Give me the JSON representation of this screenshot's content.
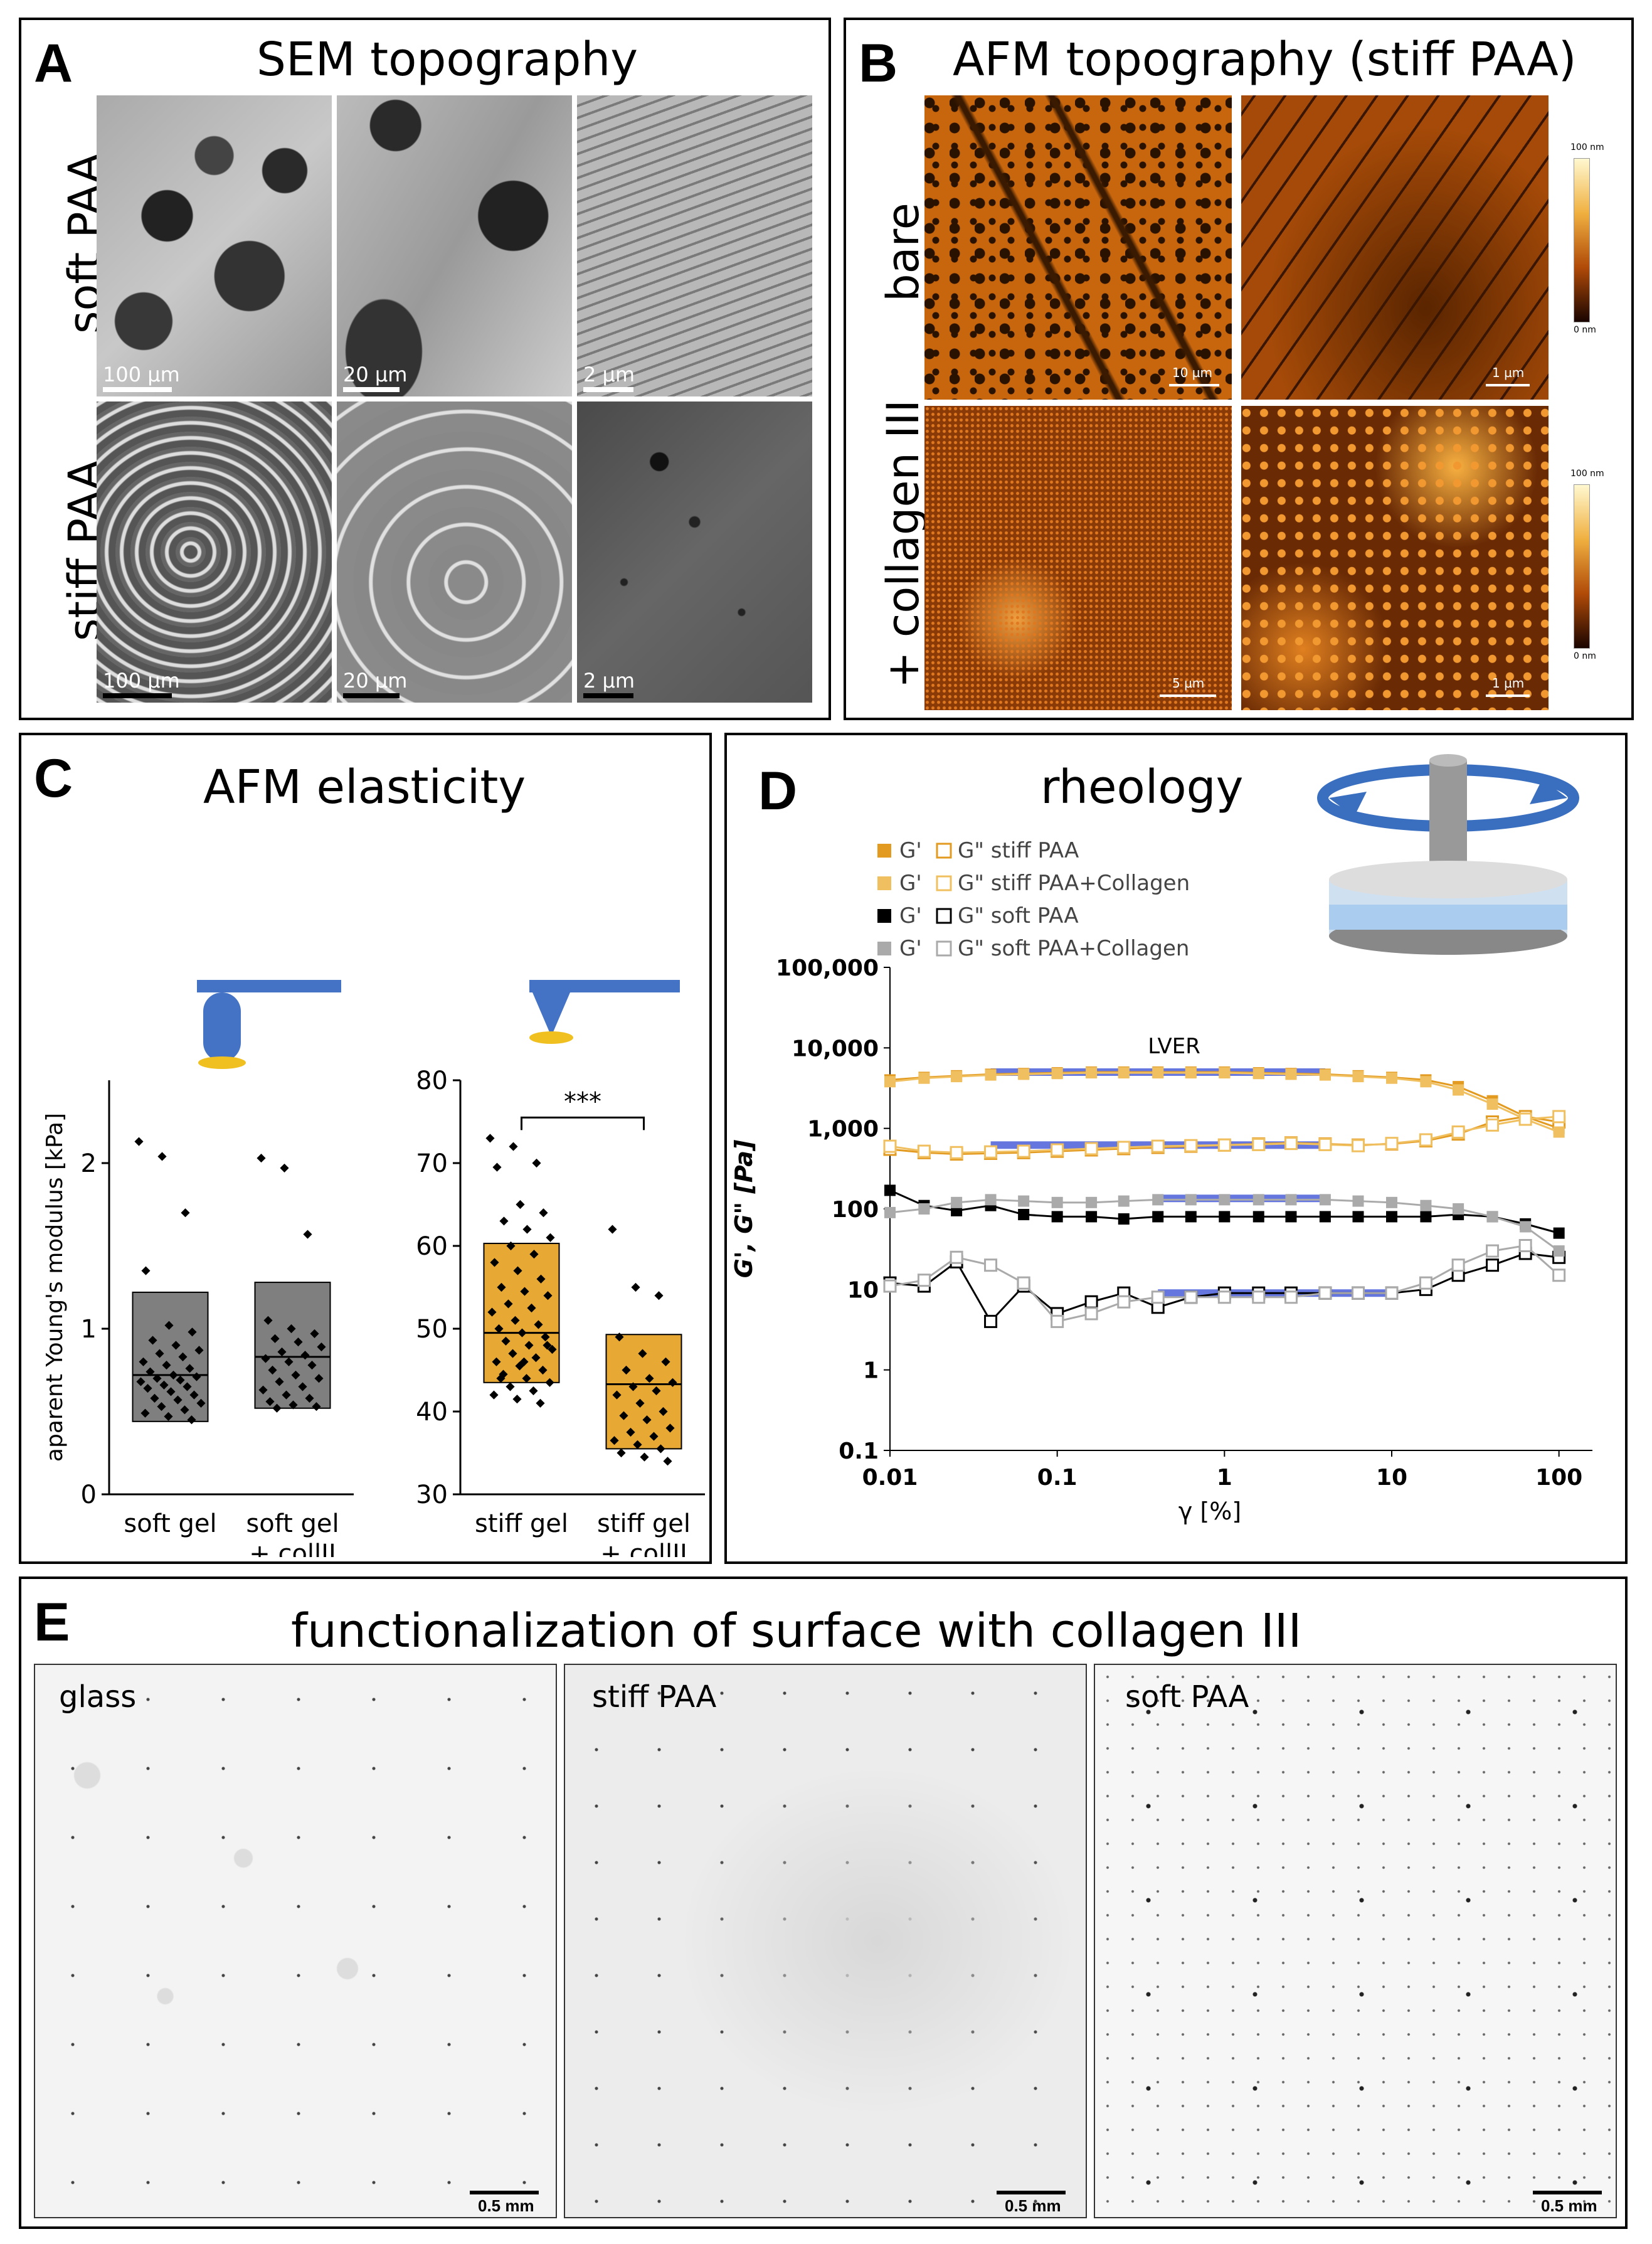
{
  "panels": {
    "A": {
      "label": "A",
      "title": "SEM topography",
      "rows": [
        "soft PAA",
        "stiff PAA"
      ],
      "scales": [
        "100 µm",
        "20 µm",
        "2 µm",
        "100 µm",
        "20 µm",
        "2 µm"
      ]
    },
    "B": {
      "label": "B",
      "title": "AFM topography (stiff PAA)",
      "rows": [
        "bare",
        "+ collagen III"
      ],
      "scales": [
        "10 µm",
        "1 µm",
        "5 µm",
        "1 µm"
      ],
      "colorbar": {
        "top": "100 nm",
        "bottom": "0 nm"
      }
    },
    "C": {
      "label": "C",
      "title": "AFM elasticity",
      "sig": "***"
    },
    "D": {
      "label": "D",
      "title": "rheology",
      "lver": "LVER"
    },
    "E": {
      "label": "E",
      "title": "functionalization of surface with collagen III",
      "subpanels": [
        {
          "label": "glass",
          "scale": "0.5 mm"
        },
        {
          "label": "stiff PAA",
          "scale": "0.5 mm"
        },
        {
          "label": "soft PAA",
          "scale": "0.5 mm"
        }
      ]
    }
  },
  "chart_data": [
    {
      "type": "box",
      "panel": "C-left",
      "ylabel": "aparent Young's modulus [kPa]",
      "ylim": [
        0,
        2.5
      ],
      "yticks": [
        "0",
        "1",
        "2"
      ],
      "categories": [
        "soft gel",
        "soft gel\n+ collII"
      ],
      "colors": {
        "fill": "#7f7f7f"
      },
      "boxes": [
        {
          "q1": 0.44,
          "median": 0.72,
          "q3": 1.22
        },
        {
          "q1": 0.52,
          "median": 0.83,
          "q3": 1.28
        }
      ],
      "points": [
        [
          2.13,
          2.04,
          1.7,
          1.35,
          1.02,
          0.98,
          0.93,
          0.9,
          0.87,
          0.85,
          0.83,
          0.8,
          0.78,
          0.76,
          0.74,
          0.72,
          0.71,
          0.7,
          0.69,
          0.68,
          0.66,
          0.65,
          0.64,
          0.62,
          0.6,
          0.58,
          0.57,
          0.55,
          0.53,
          0.51,
          0.49,
          0.47,
          0.45
        ],
        [
          2.03,
          1.97,
          1.57,
          1.05,
          1.0,
          0.97,
          0.94,
          0.92,
          0.89,
          0.86,
          0.84,
          0.82,
          0.8,
          0.78,
          0.75,
          0.72,
          0.7,
          0.68,
          0.65,
          0.63,
          0.6,
          0.58,
          0.56,
          0.54,
          0.53,
          0.52
        ]
      ]
    },
    {
      "type": "box",
      "panel": "C-right",
      "ylim": [
        30,
        80
      ],
      "yticks": [
        "30",
        "40",
        "50",
        "60",
        "70",
        "80"
      ],
      "categories": [
        "stiff gel",
        "stiff gel\n+ collII"
      ],
      "colors": {
        "fill": "#e7a934"
      },
      "boxes": [
        {
          "q1": 43.5,
          "median": 49.5,
          "q3": 60.3
        },
        {
          "q1": 35.5,
          "median": 43.3,
          "q3": 49.3
        }
      ],
      "points": [
        [
          73,
          72,
          70,
          69.5,
          65,
          64,
          63,
          62,
          61,
          60,
          59,
          58,
          57,
          56,
          55,
          54.5,
          54,
          53,
          52.5,
          52,
          51,
          50.5,
          50,
          49.5,
          49,
          48.5,
          48,
          47.5,
          47,
          46.5,
          46,
          45.5,
          45,
          44.5,
          44,
          43.5,
          43,
          42.5,
          42,
          41.5,
          41,
          44,
          46,
          48
        ],
        [
          62,
          55,
          54,
          49,
          47,
          46,
          45,
          44,
          43.5,
          43,
          42.5,
          42,
          41,
          40,
          39.5,
          39,
          38,
          37.5,
          37,
          36.5,
          36,
          35.5,
          35,
          34.5,
          34
        ]
      ]
    },
    {
      "type": "line",
      "panel": "D",
      "xlabel": "γ [%]",
      "ylabel": "G', G\" [Pa]",
      "xscale": "log",
      "yscale": "log",
      "xticks": [
        "0.01",
        "0.1",
        "1",
        "10",
        "100"
      ],
      "yticks": [
        "0.1",
        "1",
        "10",
        "100",
        "1,000",
        "10,000",
        "100,000"
      ],
      "legend": [
        {
          "g1": "G'",
          "g2": "G\" stiff PAA"
        },
        {
          "g1": "G'",
          "g2": "G\" stiff PAA+Collagen"
        },
        {
          "g1": "G'",
          "g2": "G\" soft PAA"
        },
        {
          "g1": "G'",
          "g2": "G\" soft PAA+Collagen"
        }
      ],
      "x": [
        0.01,
        0.016,
        0.025,
        0.04,
        0.063,
        0.1,
        0.16,
        0.25,
        0.4,
        0.63,
        1,
        1.6,
        2.5,
        4,
        6.3,
        10,
        16,
        25,
        40,
        63,
        100
      ],
      "series": [
        {
          "color": "#e39a20",
          "filled": true,
          "values": [
            4000,
            4300,
            4500,
            4700,
            4800,
            4900,
            5000,
            5000,
            5000,
            5000,
            5000,
            4900,
            4800,
            4700,
            4500,
            4300,
            4000,
            3300,
            2200,
            1400,
            1000
          ]
        },
        {
          "color": "#e39a20",
          "filled": false,
          "values": [
            550,
            500,
            480,
            490,
            500,
            520,
            540,
            560,
            580,
            600,
            620,
            640,
            660,
            640,
            620,
            640,
            700,
            850,
            1200,
            1400,
            1200
          ]
        },
        {
          "color": "#f0c060",
          "filled": true,
          "values": [
            3800,
            4200,
            4400,
            4600,
            4700,
            4800,
            4900,
            4900,
            4900,
            4900,
            4900,
            4800,
            4700,
            4600,
            4400,
            4200,
            3800,
            3000,
            2000,
            1300,
            900
          ]
        },
        {
          "color": "#f0c060",
          "filled": false,
          "values": [
            600,
            520,
            500,
            510,
            520,
            540,
            560,
            580,
            600,
            610,
            620,
            630,
            650,
            630,
            610,
            650,
            720,
            900,
            1100,
            1300,
            1400
          ]
        },
        {
          "color": "#000000",
          "filled": true,
          "values": [
            170,
            110,
            95,
            110,
            85,
            80,
            80,
            75,
            80,
            80,
            80,
            80,
            80,
            80,
            80,
            80,
            80,
            85,
            80,
            65,
            50
          ]
        },
        {
          "color": "#000000",
          "filled": false,
          "values": [
            12,
            11,
            22,
            4,
            11,
            5,
            7,
            9,
            6,
            8,
            9,
            9,
            9,
            9,
            9,
            9,
            10,
            15,
            20,
            28,
            25
          ]
        },
        {
          "color": "#aaaaaa",
          "filled": true,
          "values": [
            90,
            100,
            120,
            130,
            125,
            120,
            120,
            125,
            130,
            130,
            130,
            130,
            130,
            130,
            125,
            120,
            110,
            100,
            80,
            60,
            30
          ]
        },
        {
          "color": "#aaaaaa",
          "filled": false,
          "values": [
            11,
            13,
            25,
            20,
            12,
            4,
            5,
            7,
            8,
            8,
            8,
            8,
            8,
            9,
            9,
            9,
            12,
            20,
            30,
            35,
            15
          ]
        }
      ]
    }
  ]
}
